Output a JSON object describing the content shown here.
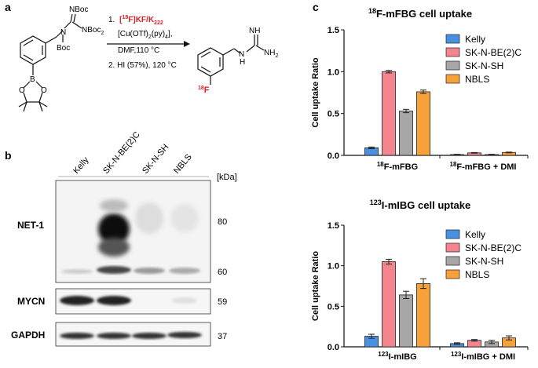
{
  "panel_labels": {
    "a": "a",
    "b": "b",
    "c": "c"
  },
  "scheme": {
    "reagent_boc1": "NBoc",
    "reagent_n": "N",
    "reagent_boc2": "Boc",
    "reagent_nboc2": "NBoc",
    "reagent_nboc2_sub": "2",
    "step1_num": "1.",
    "step1_lead": "[",
    "step1_sup": "18",
    "step1_main": "F]KF/K",
    "step1_sub": "222",
    "conditions_1a": "[Cu(OTf)",
    "conditions_1b": "2",
    "conditions_1c": "(py)",
    "conditions_1d": "4",
    "conditions_1e": "],",
    "conditions_2": "DMF,110  °C",
    "step2": "2. HI (57%), 120 °C",
    "product_nh": "NH",
    "product_n": "N",
    "product_h": "H",
    "product_nh2_main": "NH",
    "product_nh2_sub": "2",
    "product_f_sup": "18",
    "product_f": "F",
    "boron": "B",
    "o1": "O",
    "o2": "O",
    "accent_color": "#d62027"
  },
  "blot": {
    "lanes": [
      "Kelly",
      "SK-N-BE(2)C",
      "SK-N-SH",
      "NBLS"
    ],
    "kda_label": "[kDa]",
    "rows": [
      {
        "label": "NET-1",
        "markers": [
          "80",
          "60"
        ]
      },
      {
        "label": "MYCN",
        "markers": [
          "59"
        ]
      },
      {
        "label": "GAPDH",
        "markers": [
          "37"
        ]
      }
    ]
  },
  "chart_data": [
    {
      "type": "bar",
      "title_sup": "18",
      "title": "F-mFBG cell uptake",
      "ylabel": "Cell uptake Ratio",
      "ylim": [
        0,
        1.5
      ],
      "yticks": [
        "0.0",
        "0.5",
        "1.0",
        "1.5"
      ],
      "categories": [
        {
          "sup": "18",
          "label": "F-mFBG"
        },
        {
          "sup": "18",
          "label": "F-mFBG + DMI"
        }
      ],
      "series": [
        {
          "name": "Kelly",
          "color": "#4a90e2",
          "values": [
            0.09,
            0.01
          ],
          "errors": [
            0.01,
            0.003
          ]
        },
        {
          "name": "SK-N-BE(2)C",
          "color": "#f4858e",
          "values": [
            1.0,
            0.03
          ],
          "errors": [
            0.015,
            0.004
          ]
        },
        {
          "name": "SK-N-SH",
          "color": "#a6a6a6",
          "values": [
            0.53,
            0.01
          ],
          "errors": [
            0.02,
            0.003
          ]
        },
        {
          "name": "NBLS",
          "color": "#f7a13a",
          "values": [
            0.76,
            0.035
          ],
          "errors": [
            0.02,
            0.004
          ]
        }
      ],
      "legend": "top-right",
      "grid": false
    },
    {
      "type": "bar",
      "title_sup": "123",
      "title": "I-mIBG cell uptake",
      "ylabel": "Cell uptake Ratio",
      "ylim": [
        0,
        1.5
      ],
      "yticks": [
        "0.0",
        "0.5",
        "1.0",
        "1.5"
      ],
      "categories": [
        {
          "sup": "123",
          "label": "I-mIBG"
        },
        {
          "sup": "123",
          "label": "I-mIBG + DMI"
        }
      ],
      "series": [
        {
          "name": "Kelly",
          "color": "#4a90e2",
          "values": [
            0.13,
            0.04
          ],
          "errors": [
            0.025,
            0.01
          ]
        },
        {
          "name": "SK-N-BE(2)C",
          "color": "#f4858e",
          "values": [
            1.05,
            0.08
          ],
          "errors": [
            0.03,
            0.01
          ]
        },
        {
          "name": "SK-N-SH",
          "color": "#a6a6a6",
          "values": [
            0.64,
            0.06
          ],
          "errors": [
            0.045,
            0.02
          ]
        },
        {
          "name": "NBLS",
          "color": "#f7a13a",
          "values": [
            0.78,
            0.11
          ],
          "errors": [
            0.06,
            0.025
          ]
        }
      ],
      "legend": "top-right",
      "grid": false
    }
  ]
}
